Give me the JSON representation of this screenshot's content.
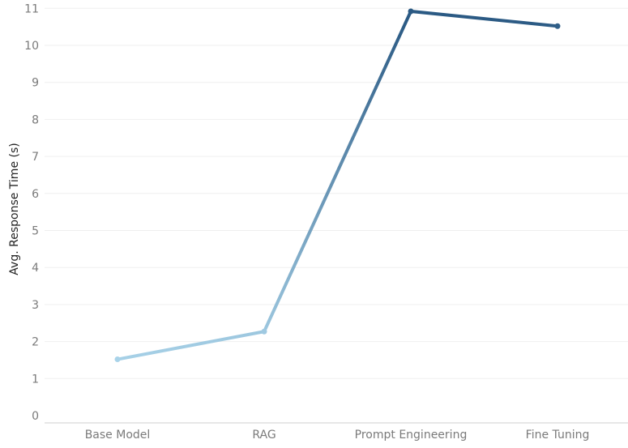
{
  "chart_data": {
    "type": "line",
    "title": "",
    "xlabel": "",
    "ylabel": "Avg. Response Time (s)",
    "categories": [
      "Base Model",
      "RAG",
      "Prompt Engineering",
      "Fine Tuning"
    ],
    "series": [
      {
        "values": [
          1.52,
          2.27,
          10.92,
          10.52
        ]
      }
    ],
    "ylim": [
      0,
      11
    ],
    "yticks": [
      "0",
      "1",
      "2",
      "3",
      "4",
      "5",
      "6",
      "7",
      "8",
      "9",
      "10",
      "11"
    ],
    "grid": "horizontal",
    "legend": "none",
    "colors": {
      "low": "#a9d3e9",
      "high": "#2b5a84",
      "grid": "#efefef",
      "axis": "#cfcfcf"
    }
  }
}
